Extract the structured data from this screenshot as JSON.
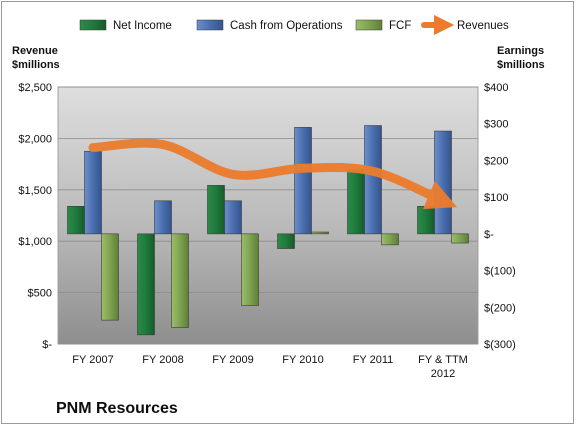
{
  "chart_data": {
    "type": "bar",
    "company": "PNM Resources",
    "categories": [
      "FY 2007",
      "FY 2008",
      "FY 2009",
      "FY 2010",
      "FY 2011",
      "FY & TTM\n2012"
    ],
    "series": [
      {
        "name": "Net Income",
        "axis": "right",
        "kind": "bar",
        "color": "#1f7a3c",
        "values": [
          75,
          -275,
          132,
          -40,
          175,
          75
        ]
      },
      {
        "name": "Cash from Operations",
        "axis": "right",
        "kind": "bar",
        "color": "#4a6fae",
        "values": [
          225,
          90,
          90,
          290,
          295,
          280
        ]
      },
      {
        "name": "FCF",
        "axis": "right",
        "kind": "bar",
        "color": "#7ea34f",
        "values": [
          -235,
          -255,
          -195,
          5,
          -30,
          -25
        ]
      },
      {
        "name": "Revenues",
        "axis": "left",
        "kind": "line",
        "color": "#ec7c2c",
        "values": [
          1910,
          1940,
          1650,
          1710,
          1680,
          1390
        ]
      }
    ],
    "y_left": {
      "label_line1": "Revenue",
      "label_line2": "$millions",
      "ylim": [
        0,
        2500
      ],
      "ticks": [
        0,
        500,
        1000,
        1500,
        2000,
        2500
      ],
      "tick_labels": [
        "$-",
        "$500",
        "$1,000",
        "$1,500",
        "$2,000",
        "$2,500"
      ]
    },
    "y_right": {
      "label_line1": "Earnings",
      "label_line2": "$millions",
      "ylim": [
        -300,
        400
      ],
      "ticks": [
        -300,
        -200,
        -100,
        0,
        100,
        200,
        300,
        400
      ],
      "tick_labels": [
        "$(300)",
        "$(200)",
        "$(100)",
        "$-",
        "$100",
        "$200",
        "$300",
        "$400"
      ]
    },
    "grid": true,
    "legend_position": "top"
  }
}
